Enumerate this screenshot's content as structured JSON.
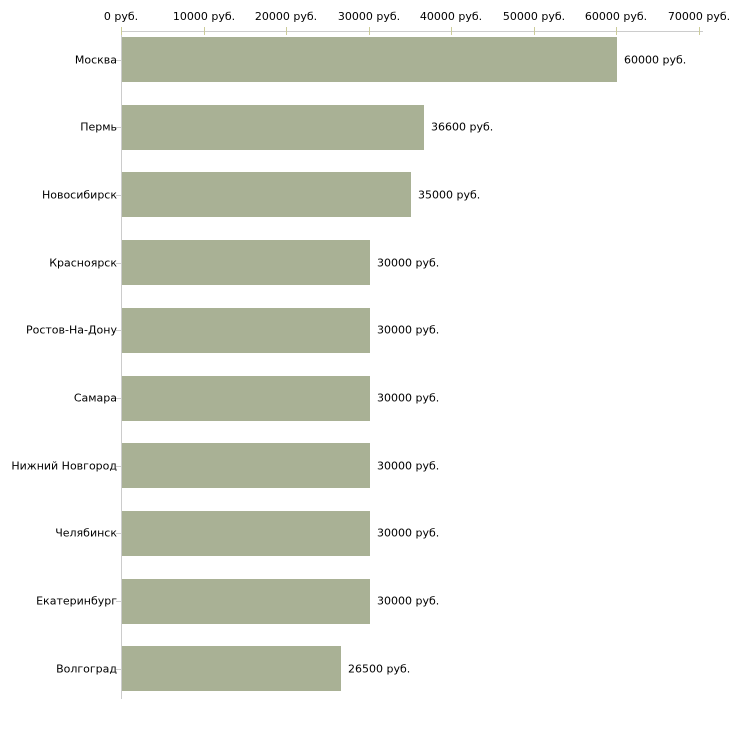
{
  "chart_data": {
    "type": "bar",
    "orientation": "horizontal",
    "title": "",
    "xlabel": "",
    "ylabel": "",
    "unit_suffix": " руб.",
    "xlim": [
      0,
      70000
    ],
    "grid": false,
    "legend": false,
    "x_tick_values": [
      0,
      10000,
      20000,
      30000,
      40000,
      50000,
      60000,
      70000
    ],
    "x_tick_labels": [
      "0 руб.",
      "10000 руб.",
      "20000 руб.",
      "30000 руб.",
      "40000 руб.",
      "50000 руб.",
      "60000 руб.",
      "70000 руб."
    ],
    "categories": [
      "Москва",
      "Пермь",
      "Новосибирск",
      "Красноярск",
      "Ростов-На-Дону",
      "Самара",
      "Нижний Новгород",
      "Челябинск",
      "Екатеринбург",
      "Волгоград"
    ],
    "values": [
      60000,
      36600,
      35000,
      30000,
      30000,
      30000,
      30000,
      30000,
      30000,
      26500
    ],
    "value_labels": [
      "60000 руб.",
      "36600 руб.",
      "35000 руб.",
      "30000 руб.",
      "30000 руб.",
      "30000 руб.",
      "30000 руб.",
      "30000 руб.",
      "30000 руб.",
      "26500 руб."
    ],
    "colors": {
      "bar": "#a9b195",
      "axis_line": "#cccccc",
      "x_tick_mark": "#cccc99",
      "y_tick_mark": "#cccccc",
      "label_text": "#000000",
      "background": "#ffffff"
    }
  }
}
